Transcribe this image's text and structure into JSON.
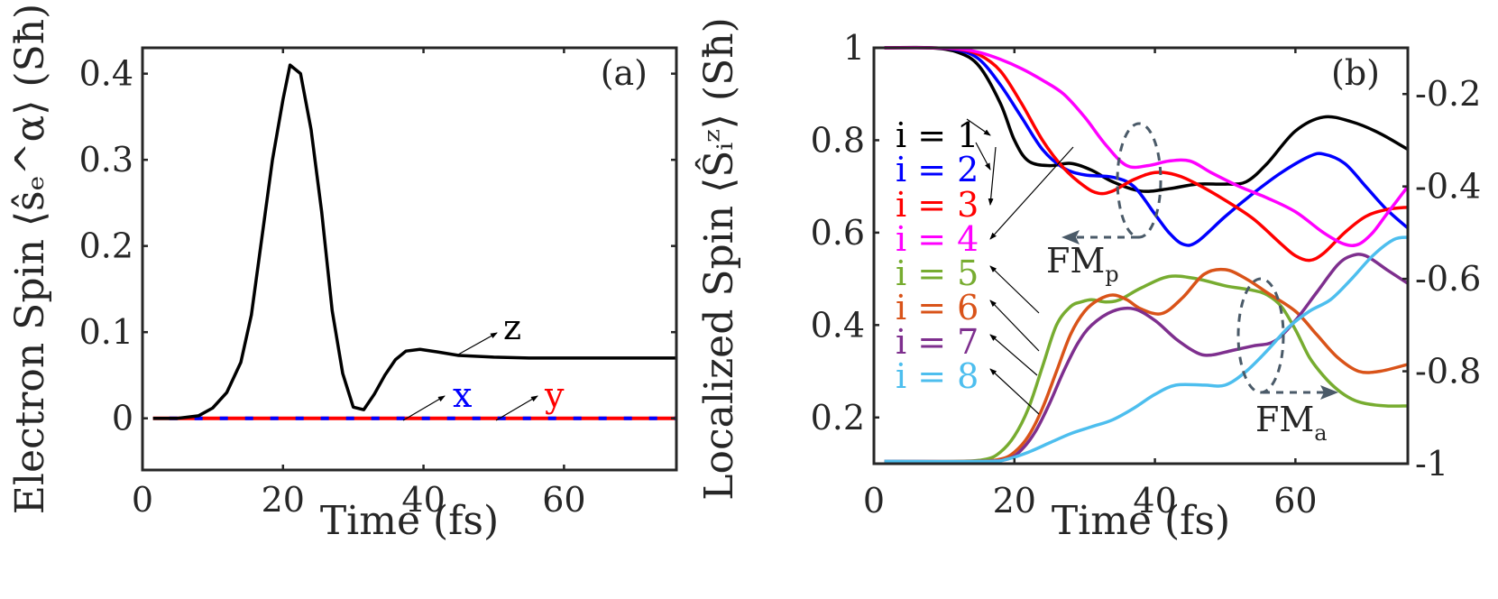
{
  "figure": {
    "panels": [
      {
        "id": "a",
        "label": "(a)"
      },
      {
        "id": "b",
        "label": "(b)"
      }
    ]
  },
  "chart_data": [
    {
      "type": "line",
      "panel_label": "(a)",
      "title": "",
      "xlabel": "Time (fs)",
      "ylabel": "Electron Spin ⟨ŝₑ^α⟩ (Sħ)",
      "xlim": [
        0,
        76
      ],
      "ylim": [
        -0.06,
        0.43
      ],
      "xticks": [
        0,
        20,
        40,
        60
      ],
      "xtick_labels": [
        "0",
        "20",
        "40",
        "60"
      ],
      "yticks": [
        0,
        0.1,
        0.2,
        0.3,
        0.4
      ],
      "ytick_labels": [
        "0",
        "0.1",
        "0.2",
        "0.3",
        "0.4"
      ],
      "grid": false,
      "annotations": [
        {
          "text": "z",
          "color": "#000000"
        },
        {
          "text": "x",
          "color": "#0000ff"
        },
        {
          "text": "y",
          "color": "#ff0000"
        }
      ],
      "series": [
        {
          "name": "z",
          "color": "#000000",
          "style": "solid",
          "x": [
            1.5,
            5,
            8,
            10,
            12,
            14,
            15.5,
            17,
            18.5,
            20,
            21,
            22.5,
            24,
            25.5,
            27,
            28.5,
            30,
            31.5,
            33,
            34.5,
            36,
            37.5,
            39.5,
            42,
            45,
            50,
            55,
            60,
            65,
            70,
            76
          ],
          "y": [
            0,
            0,
            0.003,
            0.012,
            0.03,
            0.065,
            0.12,
            0.21,
            0.3,
            0.37,
            0.41,
            0.4,
            0.335,
            0.24,
            0.125,
            0.052,
            0.013,
            0.01,
            0.028,
            0.05,
            0.068,
            0.078,
            0.08,
            0.077,
            0.073,
            0.071,
            0.07,
            0.07,
            0.07,
            0.07,
            0.07
          ]
        },
        {
          "name": "x",
          "color": "#0000ff",
          "style": "dashed",
          "x": [
            1.5,
            76
          ],
          "y": [
            0,
            0
          ]
        },
        {
          "name": "y",
          "color": "#ff0000",
          "style": "dashed",
          "x": [
            1.5,
            76
          ],
          "y": [
            0,
            0
          ]
        }
      ]
    },
    {
      "type": "line",
      "panel_label": "(b)",
      "title": "",
      "xlabel": "Time (fs)",
      "ylabel": "Localized Spin ⟨Ŝᵢᶻ⟩ (Sħ)",
      "ylabel_right": "",
      "xlim": [
        0,
        76
      ],
      "ylim": [
        0.1,
        1.0
      ],
      "ylim_right": [
        -1.0,
        -0.1
      ],
      "xticks": [
        0,
        20,
        40,
        60
      ],
      "xtick_labels": [
        "0",
        "20",
        "40",
        "60"
      ],
      "yticks": [
        0.2,
        0.4,
        0.6,
        0.8,
        1.0
      ],
      "ytick_labels": [
        "0.2",
        "0.4",
        "0.6",
        "0.8",
        "1"
      ],
      "yticks_right": [
        -1.0,
        -0.8,
        -0.6,
        -0.4,
        -0.2
      ],
      "ytick_labels_right": [
        "-1",
        "-0.8",
        "-0.6",
        "-0.4",
        "-0.2"
      ],
      "grid": false,
      "legend_position": "inside-left",
      "annotations": [
        {
          "text": "FM",
          "subscript": "p",
          "arrow": "left"
        },
        {
          "text": "FM",
          "subscript": "a",
          "arrow": "right"
        }
      ],
      "series": [
        {
          "name": "i = 1",
          "color": "#000000",
          "axis": "left",
          "x": [
            1.5,
            8,
            12,
            15,
            18,
            20,
            22,
            25,
            28,
            31,
            34,
            38,
            42,
            46,
            50,
            53,
            56,
            60,
            64,
            68,
            72,
            76
          ],
          "y": [
            1,
            1,
            0.99,
            0.96,
            0.88,
            0.8,
            0.755,
            0.745,
            0.75,
            0.735,
            0.71,
            0.69,
            0.695,
            0.705,
            0.705,
            0.71,
            0.75,
            0.82,
            0.85,
            0.84,
            0.815,
            0.78
          ]
        },
        {
          "name": "i = 2",
          "color": "#0000ff",
          "axis": "left",
          "x": [
            1.5,
            8,
            12,
            15,
            18,
            21,
            24,
            27,
            30,
            34,
            37,
            40,
            42,
            44,
            46,
            50,
            54,
            58,
            62,
            64,
            67,
            70,
            73,
            76
          ],
          "y": [
            1,
            1,
            0.995,
            0.975,
            0.92,
            0.85,
            0.78,
            0.74,
            0.725,
            0.72,
            0.7,
            0.64,
            0.6,
            0.575,
            0.58,
            0.635,
            0.685,
            0.73,
            0.765,
            0.77,
            0.75,
            0.7,
            0.65,
            0.61
          ]
        },
        {
          "name": "i = 3",
          "color": "#ff0000",
          "axis": "left",
          "x": [
            1.5,
            8,
            12,
            15,
            18,
            21,
            24,
            27,
            30,
            32,
            34,
            37,
            40,
            43,
            46,
            50,
            54,
            58,
            60,
            62,
            64,
            67,
            70,
            73,
            76
          ],
          "y": [
            1,
            1,
            0.997,
            0.985,
            0.95,
            0.88,
            0.8,
            0.74,
            0.7,
            0.685,
            0.69,
            0.715,
            0.73,
            0.725,
            0.705,
            0.67,
            0.63,
            0.575,
            0.55,
            0.54,
            0.555,
            0.6,
            0.635,
            0.65,
            0.655
          ]
        },
        {
          "name": "i = 4",
          "color": "#ff00ff",
          "axis": "left",
          "x": [
            1.5,
            8,
            12,
            15,
            18,
            21,
            24,
            27,
            30,
            33,
            36,
            39,
            42,
            45,
            48,
            52,
            56,
            60,
            64,
            67,
            69,
            71,
            73,
            76
          ],
          "y": [
            1,
            1,
            0.998,
            0.99,
            0.975,
            0.955,
            0.93,
            0.9,
            0.85,
            0.79,
            0.745,
            0.745,
            0.755,
            0.755,
            0.73,
            0.7,
            0.675,
            0.645,
            0.6,
            0.575,
            0.575,
            0.6,
            0.64,
            0.7
          ]
        },
        {
          "name": "i = 5",
          "color": "#77ac30",
          "axis": "left",
          "x": [
            1.5,
            12,
            16,
            18,
            20,
            22,
            24,
            26,
            28,
            29.5,
            31,
            33,
            35,
            38,
            42,
            46,
            50,
            54,
            56,
            58,
            60,
            62,
            64,
            66,
            68,
            70,
            73,
            76
          ],
          "y": [
            0.105,
            0.105,
            0.11,
            0.125,
            0.16,
            0.22,
            0.31,
            0.4,
            0.44,
            0.45,
            0.455,
            0.45,
            0.455,
            0.48,
            0.505,
            0.5,
            0.485,
            0.475,
            0.465,
            0.44,
            0.39,
            0.33,
            0.29,
            0.26,
            0.24,
            0.23,
            0.225,
            0.225
          ]
        },
        {
          "name": "i = 6",
          "color": "#d95319",
          "axis": "left",
          "x": [
            1.5,
            14,
            18,
            20,
            22,
            24,
            26,
            28,
            30,
            32,
            34,
            36,
            38,
            41,
            44,
            47,
            50,
            53,
            56,
            60,
            63,
            66,
            69,
            72,
            76
          ],
          "y": [
            0.105,
            0.105,
            0.11,
            0.125,
            0.16,
            0.22,
            0.3,
            0.38,
            0.43,
            0.455,
            0.465,
            0.455,
            0.435,
            0.425,
            0.46,
            0.51,
            0.52,
            0.5,
            0.47,
            0.43,
            0.38,
            0.33,
            0.3,
            0.3,
            0.315
          ]
        },
        {
          "name": "i = 7",
          "color": "#7e2f8e",
          "axis": "left",
          "x": [
            1.5,
            15,
            19,
            21,
            23,
            25,
            27,
            29,
            31,
            34,
            37,
            40,
            43,
            46,
            48,
            51,
            54,
            57,
            60,
            63,
            66,
            68,
            70,
            73,
            76
          ],
          "y": [
            0.105,
            0.105,
            0.11,
            0.13,
            0.17,
            0.23,
            0.3,
            0.36,
            0.4,
            0.43,
            0.435,
            0.41,
            0.37,
            0.34,
            0.335,
            0.345,
            0.355,
            0.365,
            0.41,
            0.47,
            0.53,
            0.55,
            0.55,
            0.52,
            0.49
          ]
        },
        {
          "name": "i = 8",
          "color": "#4dbeee",
          "axis": "left",
          "x": [
            1.5,
            16,
            19,
            22,
            25,
            28,
            31,
            34,
            37,
            40,
            43,
            47,
            50,
            53,
            56,
            59,
            62,
            65,
            68,
            71,
            74,
            76
          ],
          "y": [
            0.105,
            0.105,
            0.11,
            0.125,
            0.145,
            0.165,
            0.18,
            0.195,
            0.22,
            0.25,
            0.27,
            0.27,
            0.27,
            0.3,
            0.345,
            0.395,
            0.43,
            0.455,
            0.5,
            0.55,
            0.585,
            0.59
          ]
        }
      ]
    }
  ]
}
